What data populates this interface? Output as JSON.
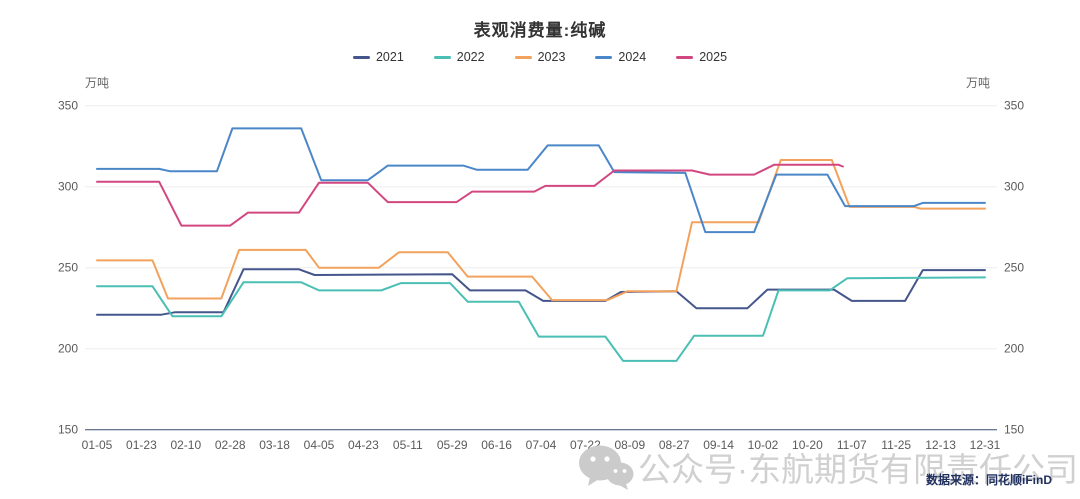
{
  "title": "表观消费量:纯碱",
  "axis_unit_left": "万吨",
  "axis_unit_right": "万吨",
  "source_note": "数据来源：同花顺iFinD",
  "watermark_text": "公众号·东航期货有限责任公司",
  "watermark_icon": "wechat-icon",
  "chart_data": {
    "type": "line",
    "title": "表观消费量:纯碱",
    "unit": "万吨",
    "grid": true,
    "legend_position": "top",
    "ylim": [
      150,
      350
    ],
    "y_ticks": [
      350,
      300,
      250,
      200,
      150
    ],
    "x_labels": [
      "01-05",
      "01-23",
      "02-10",
      "02-28",
      "03-18",
      "04-05",
      "04-23",
      "05-11",
      "05-29",
      "06-16",
      "07-04",
      "07-22",
      "08-09",
      "08-27",
      "09-14",
      "10-02",
      "10-20",
      "11-07",
      "11-25",
      "12-13",
      "12-31"
    ],
    "x_pos_note": "series points are [position,value]; position is fractional index into x_labels (0 = 01-05, 20 = 12-31)",
    "series": [
      {
        "name": "2021",
        "color": "#45568c",
        "points": [
          [
            0,
            221
          ],
          [
            1.45,
            221
          ],
          [
            1.75,
            222.5
          ],
          [
            2.85,
            222.5
          ],
          [
            3.3,
            249
          ],
          [
            4.55,
            249
          ],
          [
            4.9,
            245.5
          ],
          [
            8.0,
            246
          ],
          [
            8.4,
            236
          ],
          [
            9.65,
            236
          ],
          [
            10.05,
            229.5
          ],
          [
            11.45,
            229.5
          ],
          [
            11.8,
            235
          ],
          [
            13.05,
            235.5
          ],
          [
            13.5,
            225
          ],
          [
            14.65,
            225
          ],
          [
            15.1,
            236.5
          ],
          [
            16.6,
            236.5
          ],
          [
            17.0,
            229.5
          ],
          [
            18.2,
            229.5
          ],
          [
            18.6,
            248.5
          ],
          [
            20,
            248.5
          ]
        ]
      },
      {
        "name": "2022",
        "color": "#4abfb4",
        "points": [
          [
            0,
            238.5
          ],
          [
            1.25,
            238.5
          ],
          [
            1.7,
            220
          ],
          [
            2.8,
            220
          ],
          [
            3.3,
            241
          ],
          [
            4.6,
            241
          ],
          [
            5.0,
            236
          ],
          [
            6.4,
            236
          ],
          [
            6.85,
            240.5
          ],
          [
            7.95,
            240.5
          ],
          [
            8.35,
            229
          ],
          [
            9.5,
            229
          ],
          [
            9.95,
            207.5
          ],
          [
            11.45,
            207.5
          ],
          [
            11.85,
            192.5
          ],
          [
            13.05,
            192.5
          ],
          [
            13.45,
            208
          ],
          [
            15.0,
            208
          ],
          [
            15.35,
            236
          ],
          [
            16.5,
            236
          ],
          [
            16.9,
            243.5
          ],
          [
            20,
            244
          ]
        ]
      },
      {
        "name": "2023",
        "color": "#f2a25c",
        "points": [
          [
            0,
            254.5
          ],
          [
            1.25,
            254.5
          ],
          [
            1.6,
            231
          ],
          [
            2.8,
            231
          ],
          [
            3.2,
            261
          ],
          [
            4.7,
            261
          ],
          [
            5.0,
            250
          ],
          [
            6.35,
            250
          ],
          [
            6.8,
            259.5
          ],
          [
            7.9,
            259.5
          ],
          [
            8.35,
            244.5
          ],
          [
            9.8,
            244.5
          ],
          [
            10.25,
            230
          ],
          [
            11.5,
            230
          ],
          [
            11.95,
            235.5
          ],
          [
            13.05,
            235.5
          ],
          [
            13.4,
            278
          ],
          [
            14.9,
            278
          ],
          [
            15.4,
            316.5
          ],
          [
            16.55,
            316.5
          ],
          [
            16.95,
            287.5
          ],
          [
            18.4,
            287.5
          ],
          [
            18.55,
            286.5
          ],
          [
            20,
            286.5
          ]
        ]
      },
      {
        "name": "2024",
        "color": "#4a86c8",
        "points": [
          [
            0,
            311
          ],
          [
            1.4,
            311
          ],
          [
            1.65,
            309.5
          ],
          [
            2.7,
            309.5
          ],
          [
            3.05,
            336
          ],
          [
            4.6,
            336
          ],
          [
            5.05,
            304
          ],
          [
            6.1,
            304
          ],
          [
            6.55,
            313
          ],
          [
            8.25,
            313
          ],
          [
            8.55,
            310.5
          ],
          [
            9.7,
            310.5
          ],
          [
            10.15,
            325.5
          ],
          [
            11.3,
            325.5
          ],
          [
            11.65,
            309
          ],
          [
            13.25,
            308.5
          ],
          [
            13.7,
            272
          ],
          [
            14.8,
            272
          ],
          [
            15.3,
            307.5
          ],
          [
            16.45,
            307.5
          ],
          [
            16.85,
            288
          ],
          [
            18.4,
            288
          ],
          [
            18.6,
            290
          ],
          [
            20,
            290
          ]
        ]
      },
      {
        "name": "2025",
        "color": "#d34780",
        "points": [
          [
            0,
            303
          ],
          [
            1.4,
            303
          ],
          [
            1.9,
            276
          ],
          [
            3.0,
            276
          ],
          [
            3.4,
            284
          ],
          [
            4.55,
            284
          ],
          [
            5.0,
            302.5
          ],
          [
            6.1,
            302.5
          ],
          [
            6.55,
            290.5
          ],
          [
            8.1,
            290.5
          ],
          [
            8.45,
            297
          ],
          [
            9.85,
            297
          ],
          [
            10.1,
            300.5
          ],
          [
            11.2,
            300.5
          ],
          [
            11.65,
            310
          ],
          [
            13.4,
            310
          ],
          [
            13.8,
            307.5
          ],
          [
            14.8,
            307.5
          ],
          [
            15.25,
            313.5
          ],
          [
            16.7,
            313.5
          ],
          [
            16.8,
            312.5
          ]
        ]
      }
    ],
    "colors": {
      "axis_text": "#5a5a5a",
      "gridline": "#ededed",
      "baseline": "#3c4d72",
      "watermark": "#cbcbcb",
      "source_text": "#20305f"
    }
  }
}
